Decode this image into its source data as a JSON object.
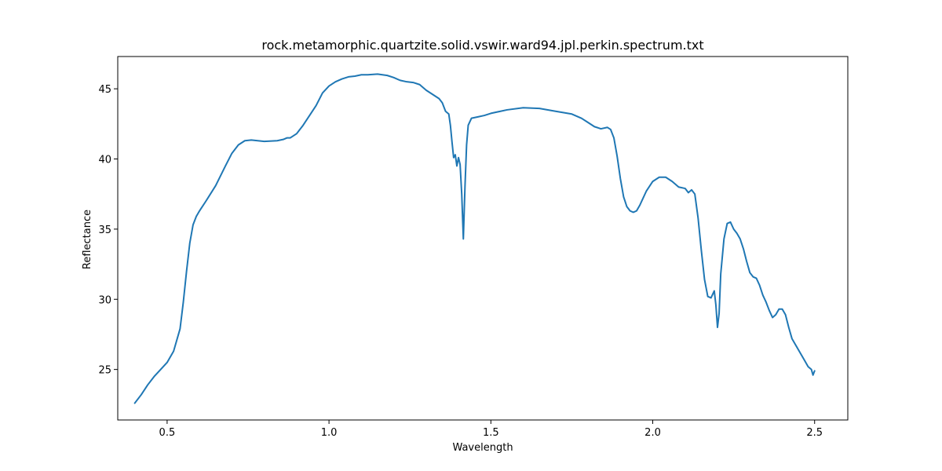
{
  "chart_data": {
    "type": "line",
    "title": "rock.metamorphic.quartzite.solid.vswir.ward94.jpl.perkin.spectrum.txt",
    "xlabel": "Wavelength",
    "ylabel": "Reflectance",
    "xlim": [
      0.3475,
      2.6025
    ],
    "ylim": [
      21.4,
      47.3
    ],
    "xticks": [
      0.5,
      1.0,
      1.5,
      2.0,
      2.5
    ],
    "xtick_labels": [
      "0.5",
      "1.0",
      "1.5",
      "2.0",
      "2.5"
    ],
    "yticks": [
      25,
      30,
      35,
      40,
      45
    ],
    "ytick_labels": [
      "25",
      "30",
      "35",
      "40",
      "45"
    ],
    "grid": false,
    "legend": "none",
    "series": [
      {
        "color": "#1f77b4",
        "x": [
          0.4,
          0.42,
          0.44,
          0.46,
          0.48,
          0.5,
          0.52,
          0.54,
          0.55,
          0.56,
          0.57,
          0.58,
          0.59,
          0.6,
          0.62,
          0.65,
          0.68,
          0.7,
          0.72,
          0.74,
          0.76,
          0.78,
          0.8,
          0.84,
          0.86,
          0.87,
          0.88,
          0.9,
          0.92,
          0.94,
          0.96,
          0.98,
          1.0,
          1.02,
          1.04,
          1.06,
          1.08,
          1.1,
          1.12,
          1.15,
          1.18,
          1.2,
          1.22,
          1.24,
          1.26,
          1.28,
          1.3,
          1.32,
          1.34,
          1.35,
          1.36,
          1.365,
          1.37,
          1.375,
          1.38,
          1.385,
          1.39,
          1.395,
          1.4,
          1.405,
          1.41,
          1.415,
          1.42,
          1.425,
          1.43,
          1.44,
          1.46,
          1.48,
          1.5,
          1.55,
          1.6,
          1.65,
          1.7,
          1.75,
          1.78,
          1.8,
          1.82,
          1.84,
          1.86,
          1.87,
          1.88,
          1.89,
          1.9,
          1.91,
          1.92,
          1.93,
          1.94,
          1.95,
          1.96,
          1.97,
          1.98,
          2.0,
          2.02,
          2.04,
          2.06,
          2.08,
          2.1,
          2.11,
          2.12,
          2.13,
          2.14,
          2.15,
          2.16,
          2.17,
          2.18,
          2.19,
          2.195,
          2.2,
          2.205,
          2.21,
          2.22,
          2.23,
          2.24,
          2.25,
          2.26,
          2.27,
          2.28,
          2.29,
          2.3,
          2.31,
          2.32,
          2.33,
          2.34,
          2.35,
          2.36,
          2.37,
          2.38,
          2.39,
          2.4,
          2.41,
          2.42,
          2.43,
          2.44,
          2.45,
          2.46,
          2.47,
          2.48,
          2.49,
          2.495,
          2.5
        ],
        "y": [
          22.6,
          23.2,
          23.9,
          24.5,
          25.0,
          25.5,
          26.3,
          27.9,
          29.8,
          32.0,
          34.0,
          35.3,
          35.9,
          36.3,
          37.0,
          38.1,
          39.5,
          40.4,
          41.0,
          41.3,
          41.35,
          41.3,
          41.25,
          41.3,
          41.4,
          41.5,
          41.5,
          41.8,
          42.4,
          43.1,
          43.8,
          44.7,
          45.2,
          45.5,
          45.7,
          45.85,
          45.9,
          46.0,
          46.0,
          46.05,
          45.95,
          45.8,
          45.6,
          45.5,
          45.45,
          45.3,
          44.9,
          44.6,
          44.3,
          44.0,
          43.4,
          43.3,
          43.2,
          42.4,
          41.2,
          40.1,
          40.3,
          39.5,
          40.1,
          39.6,
          37.5,
          34.3,
          38.0,
          41.0,
          42.4,
          42.9,
          43.0,
          43.1,
          43.25,
          43.5,
          43.65,
          43.6,
          43.4,
          43.2,
          42.9,
          42.6,
          42.3,
          42.15,
          42.25,
          42.1,
          41.5,
          40.2,
          38.6,
          37.3,
          36.6,
          36.3,
          36.2,
          36.3,
          36.7,
          37.2,
          37.7,
          38.4,
          38.7,
          38.7,
          38.4,
          38.0,
          37.9,
          37.6,
          37.8,
          37.5,
          35.8,
          33.5,
          31.4,
          30.2,
          30.1,
          30.6,
          29.6,
          28.0,
          29.0,
          31.8,
          34.3,
          35.4,
          35.5,
          35.0,
          34.7,
          34.3,
          33.6,
          32.7,
          31.9,
          31.6,
          31.5,
          31.0,
          30.3,
          29.8,
          29.2,
          28.7,
          28.9,
          29.3,
          29.3,
          28.9,
          28.0,
          27.2,
          26.8,
          26.4,
          26.0,
          25.6,
          25.2,
          25.0,
          24.6,
          24.9
        ]
      }
    ]
  }
}
